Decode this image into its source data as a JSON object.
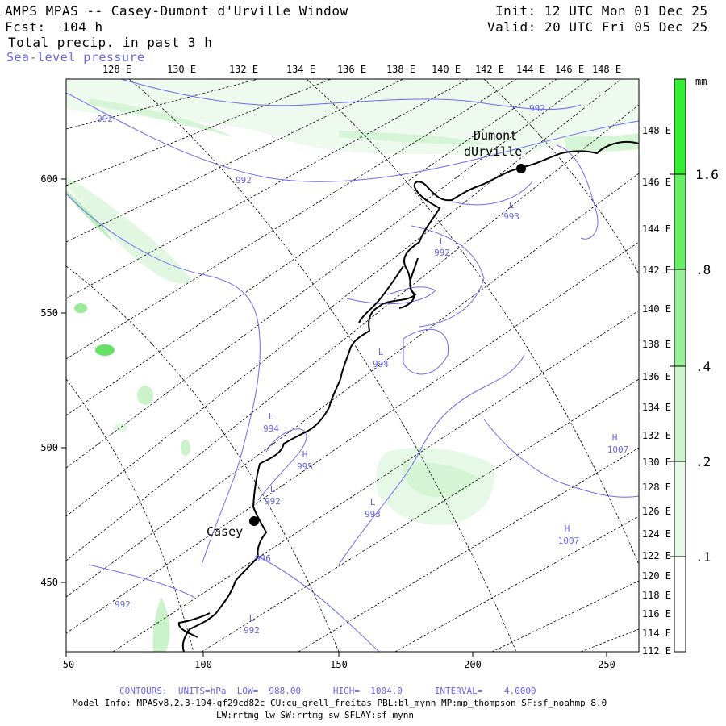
{
  "header": {
    "title": "AMPS MPAS -- Casey-Dumont d'Urville Window",
    "forecast": "Fcst:  104 h",
    "field": "Total precip. in past 3 h",
    "overlay": "Sea-level pressure",
    "init": "Init: 12 UTC Mon 01 Dec 25",
    "valid": "Valid: 20 UTC Fri 05 Dec 25"
  },
  "top_lon_labels": [
    "128 E",
    "130 E",
    "132 E",
    "134 E",
    "136 E",
    "138 E",
    "140 E",
    "142 E",
    "144 E",
    "146 E",
    "148 E"
  ],
  "right_lon_labels": [
    "148 E",
    "146 E",
    "144 E",
    "142 E",
    "140 E",
    "138 E",
    "136 E",
    "134 E",
    "132 E",
    "130 E",
    "128 E",
    "126 E",
    "124 E",
    "122 E",
    "120 E",
    "118 E",
    "116 E",
    "114 E",
    "112 E"
  ],
  "x_axis": [
    "50",
    "100",
    "150",
    "200",
    "250"
  ],
  "y_axis": [
    "600",
    "550",
    "500",
    "450"
  ],
  "colorbar": {
    "unit": "mm",
    "labels": [
      "1.6",
      ".8",
      ".4",
      ".2",
      ".1"
    ],
    "colors": [
      "#33ee33",
      "#66f066",
      "#99f099",
      "#ccf5cc",
      "#e6f9e6"
    ]
  },
  "stations": [
    {
      "name_line1": "Dumont",
      "name_line2": "dUrville"
    },
    {
      "name_line1": "Casey",
      "name_line2": ""
    }
  ],
  "pressure_labels": [
    {
      "kind": "",
      "value": "992"
    },
    {
      "kind": "",
      "value": "992"
    },
    {
      "kind": "",
      "value": "992"
    },
    {
      "kind": "L",
      "value": "993"
    },
    {
      "kind": "L",
      "value": "992"
    },
    {
      "kind": "L",
      "value": "994"
    },
    {
      "kind": "L",
      "value": "994"
    },
    {
      "kind": "H",
      "value": "995"
    },
    {
      "kind": "L",
      "value": "992"
    },
    {
      "kind": "L",
      "value": "993"
    },
    {
      "kind": "H",
      "value": "1007"
    },
    {
      "kind": "H",
      "value": "1007"
    },
    {
      "kind": "",
      "value": "996"
    },
    {
      "kind": "",
      "value": "992"
    },
    {
      "kind": "L",
      "value": "992"
    }
  ],
  "footer": {
    "contours": "CONTOURS:  UNITS=hPa  LOW=  988.00      HIGH=  1004.0      INTERVAL=    4.0000",
    "model_info": "Model Info: MPASv8.2.3-194-gf29cd82c CU:cu_grell_freitas PBL:bl_mynn MP:mp_thompson SF:sf_noahmp 8.0",
    "model_info2": "LW:rrtmg_lw SW:rrtmg_sw SFLAY:sf_mynn"
  }
}
